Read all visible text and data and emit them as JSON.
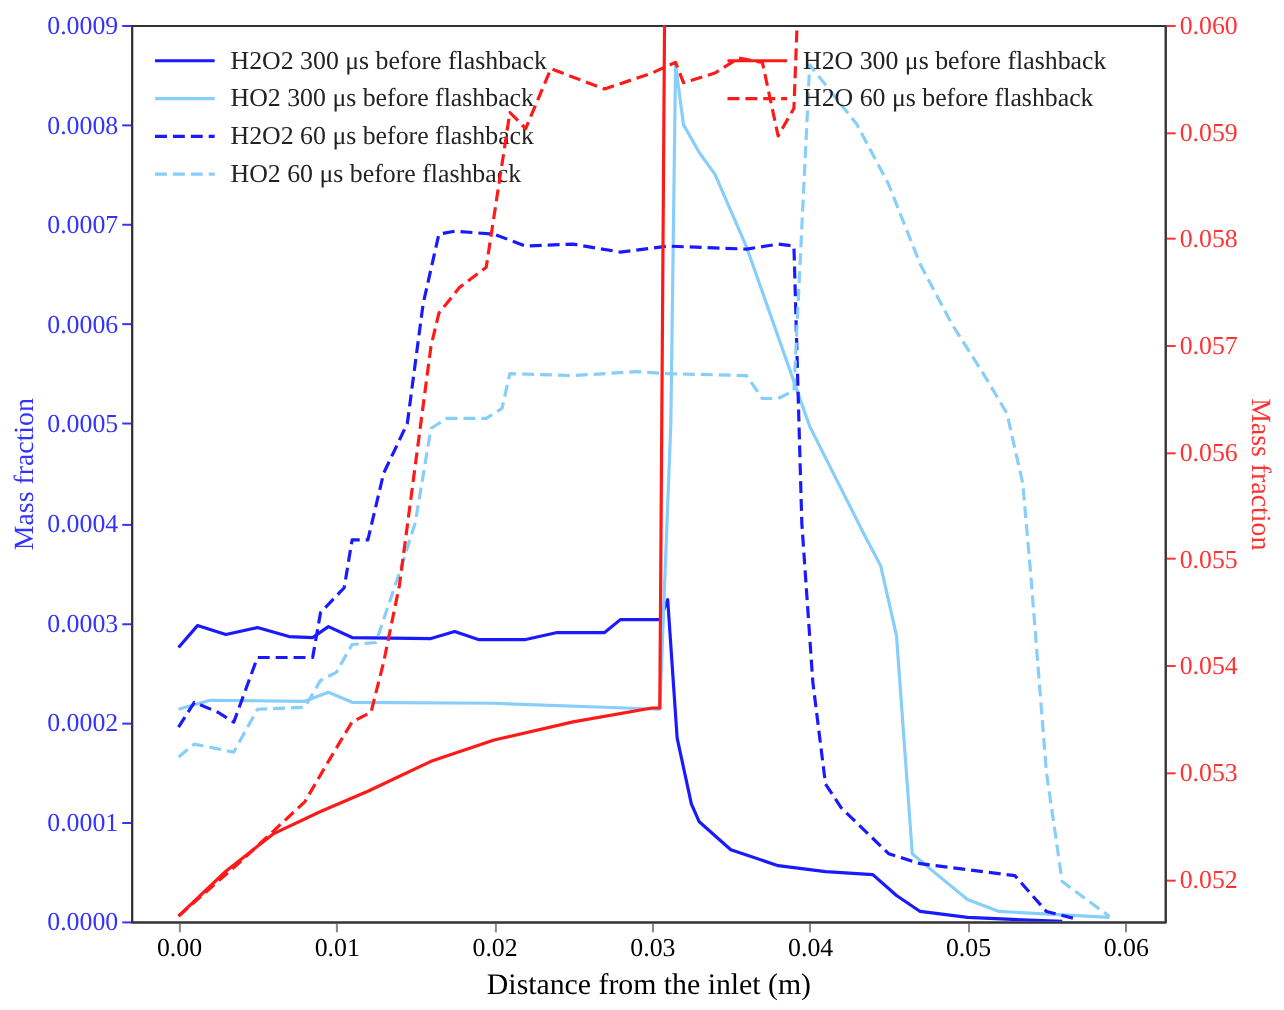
{
  "chart_data": {
    "type": "line",
    "xlabel": "Distance from the inlet (m)",
    "ylabel": "Mass fraction",
    "y2label": "Mass fraction",
    "xlim": [
      -0.003,
      0.0625
    ],
    "ylim": [
      0,
      0.0009
    ],
    "y2lim": [
      0.0516,
      0.06
    ],
    "xticks": [
      {
        "value": 0,
        "label": "0.00"
      },
      {
        "value": 0.01,
        "label": "0.01"
      },
      {
        "value": 0.02,
        "label": "0.02"
      },
      {
        "value": 0.03,
        "label": "0.03"
      },
      {
        "value": 0.04,
        "label": "0.04"
      },
      {
        "value": 0.05,
        "label": "0.05"
      },
      {
        "value": 0.06,
        "label": "0.06"
      }
    ],
    "yticks": [
      {
        "value": 0,
        "label": "0.0000"
      },
      {
        "value": 0.0001,
        "label": "0.0001"
      },
      {
        "value": 0.0002,
        "label": "0.0002"
      },
      {
        "value": 0.0003,
        "label": "0.0003"
      },
      {
        "value": 0.0004,
        "label": "0.0004"
      },
      {
        "value": 0.0005,
        "label": "0.0005"
      },
      {
        "value": 0.0006,
        "label": "0.0006"
      },
      {
        "value": 0.0007,
        "label": "0.0007"
      },
      {
        "value": 0.0008,
        "label": "0.0008"
      },
      {
        "value": 0.0009,
        "label": "0.0009"
      }
    ],
    "y2ticks": [
      {
        "value": 0.052,
        "label": "0.052"
      },
      {
        "value": 0.053,
        "label": "0.053"
      },
      {
        "value": 0.054,
        "label": "0.054"
      },
      {
        "value": 0.055,
        "label": "0.055"
      },
      {
        "value": 0.056,
        "label": "0.056"
      },
      {
        "value": 0.057,
        "label": "0.057"
      },
      {
        "value": 0.058,
        "label": "0.058"
      },
      {
        "value": 0.059,
        "label": "0.059"
      },
      {
        "value": 0.06,
        "label": "0.060"
      }
    ],
    "grid": false,
    "legend": "top",
    "marker": "none",
    "series": [
      {
        "name": "H2O2 300 μs before flashback",
        "color": "#1a1aff",
        "line_style": "solid",
        "x": [
          0,
          0.0012,
          0.003,
          0.005,
          0.007,
          0.0085,
          0.0095,
          0.011,
          0.016,
          0.0175,
          0.019,
          0.022,
          0.024,
          0.027,
          0.028,
          0.0305,
          0.031,
          0.0316,
          0.0325,
          0.033,
          0.035,
          0.038,
          0.041,
          0.044,
          0.0455,
          0.047,
          0.05,
          0.056
        ],
        "values": [
          0.000275,
          0.000297,
          0.000288,
          0.000295,
          0.000286,
          0.000285,
          0.000296,
          0.000285,
          0.000284,
          0.000291,
          0.000283,
          0.000283,
          0.00029,
          0.00029,
          0.000303,
          0.000303,
          0.000323,
          0.000184,
          0.000118,
          0.0001,
          7.2e-05,
          5.6e-05,
          5e-05,
          4.7e-05,
          2.6e-05,
          1e-05,
          4e-06,
          0
        ]
      },
      {
        "name": "HO2 300 μs before flashback",
        "color": "#87cefa",
        "line_style": "solid",
        "x": [
          0,
          0.002,
          0.008,
          0.0095,
          0.011,
          0.02,
          0.027,
          0.0305,
          0.0312,
          0.0315,
          0.032,
          0.033,
          0.034,
          0.036,
          0.04,
          0.0435,
          0.0445,
          0.0455,
          0.0465,
          0.048,
          0.05,
          0.052,
          0.059
        ],
        "values": [
          0.000213,
          0.000222,
          0.000221,
          0.00023,
          0.00022,
          0.000219,
          0.000215,
          0.000213,
          0.0005,
          0.00086,
          0.0008,
          0.000772,
          0.00075,
          0.000677,
          0.000497,
          0.000387,
          0.000357,
          0.000287,
          6.8e-05,
          4.8e-05,
          2.2e-05,
          1e-05,
          4e-06
        ]
      },
      {
        "name": "H2O2 60 μs before flashback",
        "color": "#1a1aff",
        "line_style": "dashed",
        "x": [
          0,
          0.001,
          0.0025,
          0.0035,
          0.005,
          0.0085,
          0.009,
          0.0105,
          0.011,
          0.012,
          0.013,
          0.0145,
          0.0155,
          0.0165,
          0.0175,
          0.02,
          0.022,
          0.025,
          0.028,
          0.031,
          0.036,
          0.038,
          0.039,
          0.0395,
          0.0402,
          0.041,
          0.042,
          0.045,
          0.047,
          0.05,
          0.053,
          0.054,
          0.055,
          0.057
        ],
        "values": [
          0.000195,
          0.00022,
          0.00021,
          0.0002,
          0.000265,
          0.000265,
          0.00031,
          0.000335,
          0.000383,
          0.000383,
          0.00045,
          0.0005,
          0.00062,
          0.00069,
          0.000693,
          0.00069,
          0.000678,
          0.00068,
          0.000672,
          0.000678,
          0.000675,
          0.00068,
          0.000678,
          0.0004,
          0.00024,
          0.000138,
          0.000114,
          6.8e-05,
          5.8e-05,
          5.2e-05,
          4.6e-05,
          2.8e-05,
          1e-05,
          2e-06
        ]
      },
      {
        "name": "HO2 60 μs before flashback",
        "color": "#87cefa",
        "line_style": "dashed",
        "x": [
          0,
          0.001,
          0.0035,
          0.005,
          0.008,
          0.009,
          0.01,
          0.011,
          0.0125,
          0.014,
          0.015,
          0.016,
          0.017,
          0.0195,
          0.0205,
          0.021,
          0.025,
          0.029,
          0.031,
          0.036,
          0.037,
          0.038,
          0.039,
          0.04,
          0.041,
          0.043,
          0.045,
          0.047,
          0.049,
          0.051,
          0.0525,
          0.0535,
          0.054,
          0.055,
          0.056,
          0.059
        ],
        "values": [
          0.000165,
          0.000178,
          0.00017,
          0.000213,
          0.000215,
          0.000242,
          0.00025,
          0.000278,
          0.00028,
          0.00035,
          0.0004,
          0.000495,
          0.000505,
          0.000505,
          0.000515,
          0.00055,
          0.000548,
          0.000552,
          0.00055,
          0.000548,
          0.000525,
          0.000525,
          0.000533,
          0.00086,
          0.00084,
          0.0008,
          0.00074,
          0.00066,
          0.0006,
          0.00055,
          0.00051,
          0.00044,
          0.00035,
          0.00015,
          4e-05,
          5e-06
        ]
      },
      {
        "name": "H2O 300 μs before flashback",
        "color": "#ff1a1a",
        "line_style": "solid",
        "axis": "y2",
        "x": [
          0,
          0.003,
          0.006,
          0.009,
          0.012,
          0.016,
          0.02,
          0.025,
          0.03,
          0.0305,
          0.0308
        ],
        "values": [
          0.05165,
          0.05207,
          0.05242,
          0.05263,
          0.05282,
          0.0531,
          0.0533,
          0.05347,
          0.0536,
          0.0536,
          0.06
        ]
      },
      {
        "name": "H2O 60 μs before flashback",
        "color": "#ff1a1a",
        "line_style": "dashed",
        "axis": "y2",
        "x": [
          0,
          0.004,
          0.008,
          0.0095,
          0.011,
          0.0122,
          0.013,
          0.014,
          0.016,
          0.0165,
          0.0178,
          0.0195,
          0.021,
          0.022,
          0.0236,
          0.027,
          0.03,
          0.0315,
          0.032,
          0.034,
          0.0355,
          0.037,
          0.038,
          0.039,
          0.0392
        ],
        "values": [
          0.05165,
          0.05217,
          0.05272,
          0.0531,
          0.05347,
          0.05356,
          0.05403,
          0.05475,
          0.05699,
          0.0573,
          0.05754,
          0.05773,
          0.05918,
          0.05903,
          0.05959,
          0.0594,
          0.05955,
          0.05965,
          0.05946,
          0.05955,
          0.05969,
          0.05965,
          0.05896,
          0.05922,
          0.06
        ]
      }
    ]
  }
}
